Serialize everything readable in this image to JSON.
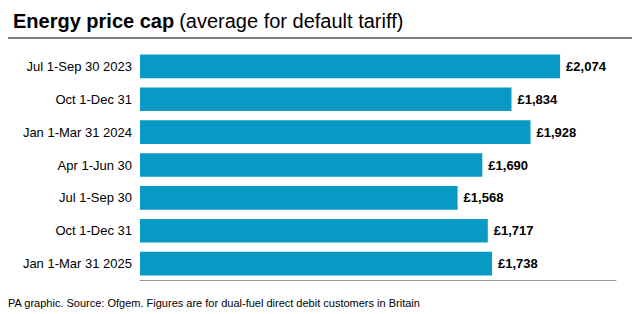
{
  "chart_data": {
    "type": "bar",
    "orientation": "horizontal",
    "title": "Energy price cap",
    "subtitle": "(average for default tariff)",
    "categories": [
      "Jul 1-Sep 30 2023",
      "Oct 1-Dec 31",
      "Jan 1-Mar 31 2024",
      "Apr 1-Jun 30",
      "Jul 1-Sep 30",
      "Oct 1-Dec 31",
      "Jan 1-Mar 31 2025"
    ],
    "values": [
      2074,
      1834,
      1928,
      1690,
      1568,
      1717,
      1738
    ],
    "value_labels": [
      "£2,074",
      "£1,834",
      "£1,928",
      "£1,690",
      "£1,568",
      "£1,717",
      "£1,738"
    ],
    "data_labels": true,
    "color": "#0899c5",
    "xlim": [
      0,
      2350
    ],
    "tick_labels": "y",
    "grid": false,
    "annotations": [
      "PA graphic. Source: Ofgem. Figures are for dual-fuel direct debit customers in Britain"
    ]
  }
}
